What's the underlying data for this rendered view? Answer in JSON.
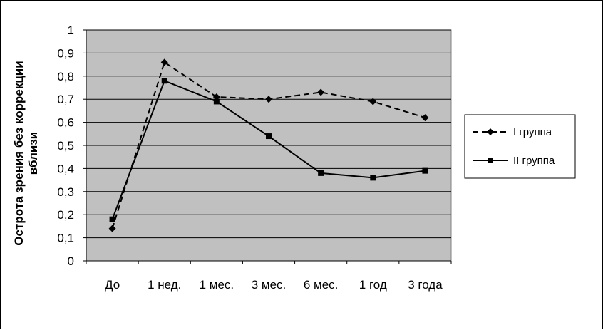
{
  "chart_data": {
    "type": "line",
    "categories": [
      "До",
      "1 нед.",
      "1 мес.",
      "3 мес.",
      "6 мес.",
      "1 год",
      "3 года"
    ],
    "ylabel_lines": [
      "Острота зрения без коррекции",
      "вблизи"
    ],
    "ylim": [
      0,
      1
    ],
    "yticks": [
      "0",
      "0,1",
      "0,2",
      "0,3",
      "0,4",
      "0,5",
      "0,6",
      "0,7",
      "0,8",
      "0,9",
      "1"
    ],
    "grid": true,
    "plot_background": "#c0c0c0",
    "legend_position": "right",
    "series": [
      {
        "name": "I группа",
        "values": [
          0.14,
          0.86,
          0.71,
          0.7,
          0.73,
          0.69,
          0.62
        ],
        "marker": "diamond",
        "line_style": "dashed",
        "color": "#000000"
      },
      {
        "name": "II группа",
        "values": [
          0.18,
          0.78,
          0.69,
          0.54,
          0.38,
          0.36,
          0.39
        ],
        "marker": "square",
        "line_style": "solid",
        "color": "#000000"
      }
    ]
  }
}
